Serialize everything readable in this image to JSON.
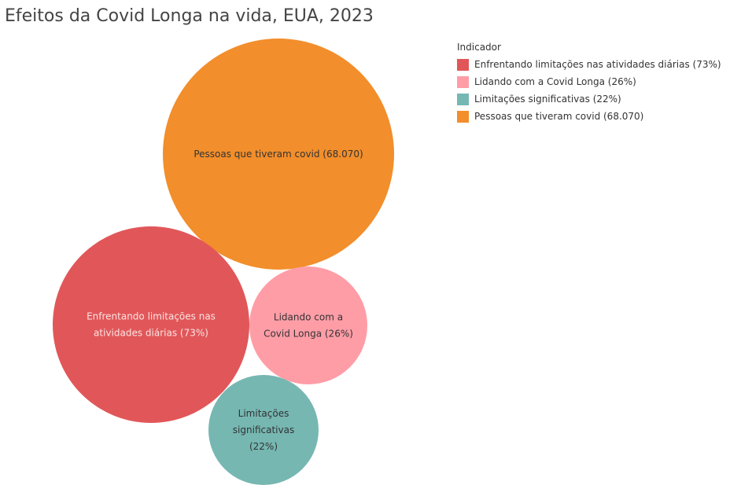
{
  "title": "Efeitos da Covid Longa na vida, EUA, 2023",
  "legend": {
    "title": "Indicador",
    "items": [
      {
        "label": "Enfrentando limitações nas atividades diárias (73%)",
        "color": "#E15759"
      },
      {
        "label": "Lidando com a Covid Longa (26%)",
        "color": "#FF9DA7"
      },
      {
        "label": "Limitações significativas (22%)",
        "color": "#76B7B2"
      },
      {
        "label": "Pessoas que tiveram covid (68.070)",
        "color": "#F28E2B"
      }
    ]
  },
  "chart_data": {
    "type": "bubble",
    "title": "Efeitos da Covid Longa na vida, EUA, 2023",
    "legend_title": "Indicador",
    "legend_position": "top-right",
    "series": [
      {
        "name": "Pessoas que tiveram covid (68.070)",
        "lines": [
          "Pessoas que tiveram covid (68.070)"
        ],
        "color": "#F28E2B",
        "text_color": "#333333"
      },
      {
        "name": "Enfrentando limitações nas atividades diárias (73%)",
        "lines": [
          "Enfrentando limitações nas",
          "atividades diárias (73%)"
        ],
        "color": "#E15759",
        "text_color": "#FBE3E3"
      },
      {
        "name": "Lidando com a Covid Longa (26%)",
        "lines": [
          "Lidando com a",
          "Covid Longa (26%)"
        ],
        "color": "#FF9DA7",
        "text_color": "#333333"
      },
      {
        "name": "Limitações significativas (22%)",
        "lines": [
          "Limitações",
          "significativas",
          "(22%)"
        ],
        "color": "#76B7B2",
        "text_color": "#333333"
      }
    ]
  }
}
